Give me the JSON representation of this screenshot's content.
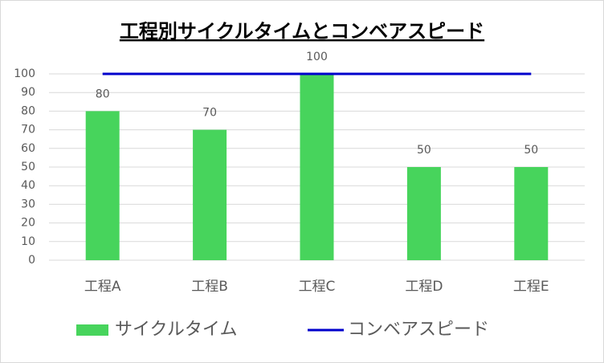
{
  "chart_data": {
    "type": "combo",
    "title": "工程別サイクルタイムとコンベアスピード",
    "categories": [
      "工程A",
      "工程B",
      "工程C",
      "工程D",
      "工程E"
    ],
    "series": [
      {
        "name": "サイクルタイム",
        "type": "bar",
        "color": "#47d45c",
        "values": [
          80,
          70,
          100,
          50,
          50
        ],
        "data_labels": true
      },
      {
        "name": "コンベアスピード",
        "type": "line",
        "color": "#0000cc",
        "values": [
          100,
          100,
          100,
          100,
          100
        ]
      }
    ],
    "ylim": [
      0,
      100
    ],
    "yticks": [
      0,
      10,
      20,
      30,
      40,
      50,
      60,
      70,
      80,
      90,
      100
    ],
    "grid": true,
    "legend": "bottom"
  }
}
